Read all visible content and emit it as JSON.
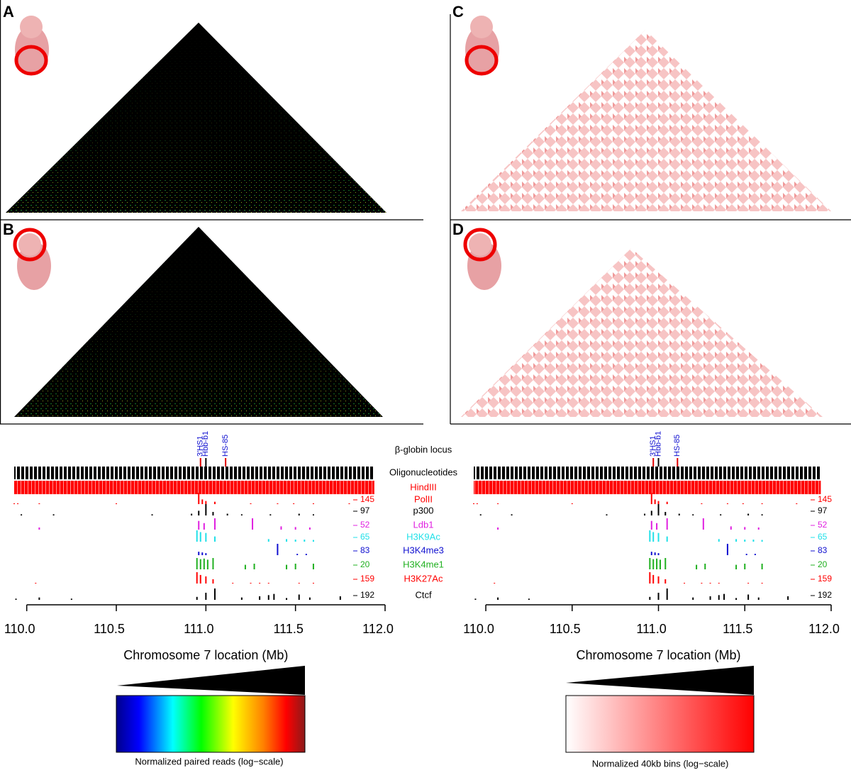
{
  "panel_labels": [
    "A",
    "B",
    "C",
    "D"
  ],
  "locus_title": "β-globin locus",
  "loci": [
    {
      "label": "3'HS1",
      "x": 110.97,
      "color": "#e00000"
    },
    {
      "label": "Hbb-b1",
      "x": 111.0,
      "color": "#000000"
    },
    {
      "label": "HS-85",
      "x": 111.11,
      "color": "#e00000"
    }
  ],
  "tracks": [
    {
      "name": "Oligonucleotides",
      "color": "#000000"
    },
    {
      "name": "HindIII",
      "color": "#ff0000"
    },
    {
      "name": "PolII",
      "color": "#ff0000",
      "max": 145,
      "x": [
        109.93,
        109.95,
        110.07,
        110.5,
        110.96,
        110.98,
        111.0,
        111.05,
        111.25,
        111.4,
        111.49,
        111.6,
        111.8
      ],
      "values": [
        10,
        10,
        10,
        10,
        145,
        60,
        40,
        30,
        10,
        10,
        10,
        10,
        10
      ]
    },
    {
      "name": "p300",
      "color": "#000000",
      "max": 97,
      "x": [
        109.97,
        110.15,
        110.7,
        110.92,
        110.96,
        111.0,
        111.04,
        111.12,
        111.2,
        111.36,
        111.52,
        111.6
      ],
      "values": [
        10,
        10,
        10,
        15,
        40,
        97,
        30,
        15,
        10,
        10,
        15,
        10
      ]
    },
    {
      "name": "Ldb1",
      "color": "#e020e0",
      "max": 52,
      "x": [
        110.07,
        110.96,
        110.99,
        111.05,
        111.26,
        111.42,
        111.5,
        111.58
      ],
      "values": [
        10,
        40,
        30,
        52,
        52,
        15,
        12,
        10
      ]
    },
    {
      "name": "H3K9Ac",
      "color": "#20e0e8",
      "max": 65,
      "x": [
        110.95,
        110.97,
        111.0,
        111.05,
        111.35,
        111.45,
        111.5,
        111.55,
        111.6
      ],
      "values": [
        65,
        55,
        50,
        30,
        15,
        15,
        12,
        12,
        10
      ]
    },
    {
      "name": "H3K4me3",
      "color": "#1010d0",
      "max": 83,
      "x": [
        110.96,
        110.98,
        111.0,
        111.4,
        111.51,
        111.56
      ],
      "values": [
        25,
        20,
        15,
        83,
        10,
        10
      ]
    },
    {
      "name": "H3K4me1",
      "color": "#20b020",
      "max": 20,
      "x": [
        110.95,
        110.97,
        110.99,
        111.01,
        111.04,
        111.22,
        111.27,
        111.45,
        111.5,
        111.6
      ],
      "values": [
        20,
        18,
        19,
        17,
        20,
        8,
        10,
        8,
        10,
        10
      ]
    },
    {
      "name": "H3K27Ac",
      "color": "#ff0000",
      "max": 159,
      "x": [
        110.05,
        110.95,
        110.97,
        111.0,
        111.04,
        111.15,
        111.25,
        111.3,
        111.35,
        111.52,
        111.6
      ],
      "values": [
        10,
        159,
        120,
        100,
        60,
        10,
        10,
        10,
        10,
        10,
        10
      ]
    },
    {
      "name": "Ctcf",
      "color": "#000000",
      "max": 192,
      "x": [
        109.94,
        110.07,
        110.25,
        110.95,
        111.0,
        111.05,
        111.2,
        111.3,
        111.35,
        111.38,
        111.45,
        111.52,
        111.58,
        111.75
      ],
      "values": [
        20,
        40,
        20,
        50,
        120,
        192,
        40,
        60,
        80,
        100,
        30,
        90,
        40,
        60
      ]
    }
  ],
  "xlim": [
    109.93,
    112.0
  ],
  "xticks": [
    {
      "value": 110,
      "label": "110.0"
    },
    110.5,
    {
      "value": 111,
      "label": "111.0"
    },
    111.5,
    {
      "value": 112,
      "label": "112.0"
    }
  ],
  "xlabel": "Chromosome 7 location (Mb)",
  "legends": [
    "Normalized paired reads (log−scale)",
    "Normalized 40kb bins (log−scale)"
  ]
}
